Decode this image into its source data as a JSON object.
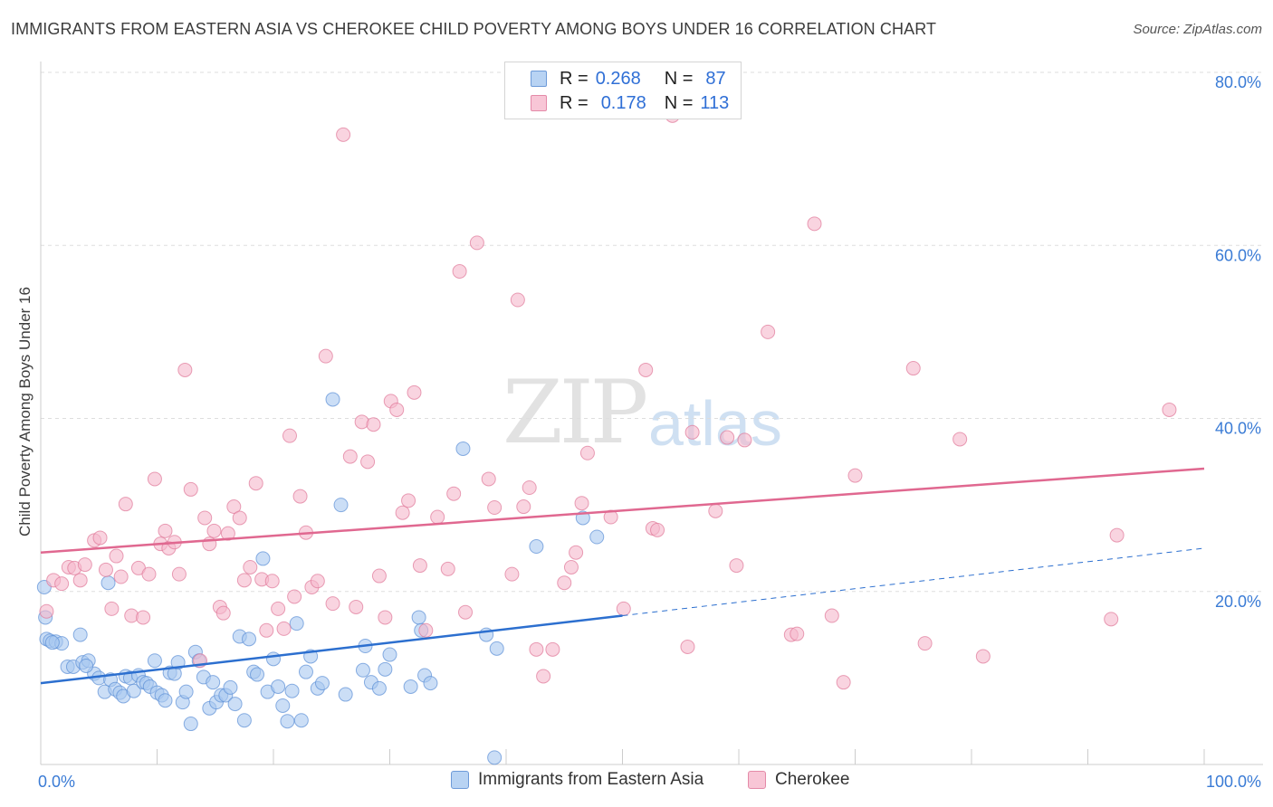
{
  "title": "IMMIGRANTS FROM EASTERN ASIA VS CHEROKEE CHILD POVERTY AMONG BOYS UNDER 16 CORRELATION CHART",
  "source": "Source: ZipAtlas.com",
  "watermark": {
    "zip": "ZIP",
    "atlas": "atlas"
  },
  "legend_top": [
    {
      "r_label": "R =",
      "r_value": "0.268",
      "n_label": "N =",
      "n_value": "87"
    },
    {
      "r_label": "R =",
      "r_value": "0.178",
      "n_label": "N =",
      "n_value": "113"
    }
  ],
  "colors": {
    "blue_fill": "#a8c8f0",
    "blue_stroke": "#5b8fd6",
    "blue_line": "#2c6fcf",
    "pink_fill": "#f5b8cc",
    "pink_stroke": "#e07898",
    "pink_line": "#e06890",
    "tick_text": "#3a7bd5",
    "grid": "#dddddd"
  },
  "chart_data": {
    "type": "scatter",
    "title": "IMMIGRANTS FROM EASTERN ASIA VS CHEROKEE CHILD POVERTY AMONG BOYS UNDER 16 CORRELATION CHART",
    "xlabel": "",
    "ylabel": "Child Poverty Among Boys Under 16",
    "xlim": [
      0,
      100
    ],
    "ylim": [
      0,
      80
    ],
    "x_tick_labels": [
      "0.0%",
      "100.0%"
    ],
    "y_tick_labels": [
      "20.0%",
      "40.0%",
      "60.0%",
      "80.0%"
    ],
    "y_ticks": [
      20,
      40,
      60,
      80
    ],
    "grid": "horizontal dashed",
    "legend_position": "top-center, bottom-center",
    "series": [
      {
        "name": "Immigrants from Eastern Asia",
        "color": "#a8c8f0",
        "trend": {
          "x0": 0,
          "y0": 9.4,
          "x1": 50,
          "y1": 17.2,
          "dashed_to": {
            "x": 100,
            "y": 25.0
          }
        },
        "points": [
          [
            0.3,
            20.5
          ],
          [
            0.5,
            14.5
          ],
          [
            0.8,
            14.3
          ],
          [
            1.3,
            14.2
          ],
          [
            1.8,
            14.0
          ],
          [
            2.3,
            11.3
          ],
          [
            2.8,
            11.3
          ],
          [
            3.4,
            15.0
          ],
          [
            3.6,
            11.8
          ],
          [
            4.1,
            12.0
          ],
          [
            4.6,
            10.5
          ],
          [
            5.0,
            10.0
          ],
          [
            5.5,
            8.4
          ],
          [
            5.8,
            21.0
          ],
          [
            6.0,
            9.8
          ],
          [
            6.4,
            8.7
          ],
          [
            6.8,
            8.3
          ],
          [
            7.1,
            7.9
          ],
          [
            7.3,
            10.2
          ],
          [
            7.7,
            10.0
          ],
          [
            8.0,
            8.5
          ],
          [
            8.4,
            10.3
          ],
          [
            8.8,
            9.5
          ],
          [
            9.1,
            9.4
          ],
          [
            9.4,
            9.0
          ],
          [
            9.8,
            12.0
          ],
          [
            10.0,
            8.3
          ],
          [
            10.4,
            8.0
          ],
          [
            10.7,
            7.4
          ],
          [
            11.1,
            10.6
          ],
          [
            11.5,
            10.5
          ],
          [
            11.8,
            11.8
          ],
          [
            12.2,
            7.2
          ],
          [
            12.5,
            8.4
          ],
          [
            12.9,
            4.7
          ],
          [
            13.3,
            13.0
          ],
          [
            13.6,
            12.0
          ],
          [
            14.0,
            10.1
          ],
          [
            14.5,
            6.5
          ],
          [
            14.8,
            9.5
          ],
          [
            15.1,
            7.2
          ],
          [
            15.5,
            8.0
          ],
          [
            15.9,
            8.0
          ],
          [
            16.3,
            8.9
          ],
          [
            16.7,
            7.0
          ],
          [
            17.1,
            14.8
          ],
          [
            17.5,
            5.1
          ],
          [
            17.9,
            14.5
          ],
          [
            18.3,
            10.7
          ],
          [
            18.6,
            10.4
          ],
          [
            19.1,
            23.8
          ],
          [
            19.5,
            8.4
          ],
          [
            20.0,
            12.2
          ],
          [
            20.4,
            9.0
          ],
          [
            20.8,
            6.8
          ],
          [
            21.2,
            5.0
          ],
          [
            21.6,
            8.5
          ],
          [
            22.0,
            16.3
          ],
          [
            22.4,
            5.1
          ],
          [
            22.8,
            10.7
          ],
          [
            23.2,
            12.5
          ],
          [
            23.8,
            8.8
          ],
          [
            24.2,
            9.4
          ],
          [
            25.1,
            42.2
          ],
          [
            25.8,
            30.0
          ],
          [
            26.2,
            8.1
          ],
          [
            27.7,
            10.9
          ],
          [
            27.9,
            13.7
          ],
          [
            28.4,
            9.5
          ],
          [
            29.1,
            8.8
          ],
          [
            29.6,
            11.0
          ],
          [
            30.0,
            12.7
          ],
          [
            31.8,
            9.0
          ],
          [
            32.5,
            17.0
          ],
          [
            32.7,
            15.5
          ],
          [
            33.0,
            10.3
          ],
          [
            33.5,
            9.4
          ],
          [
            36.3,
            36.5
          ],
          [
            38.3,
            15.0
          ],
          [
            39.0,
            0.8
          ],
          [
            39.2,
            13.4
          ],
          [
            42.6,
            25.2
          ],
          [
            46.6,
            28.5
          ],
          [
            47.8,
            26.3
          ],
          [
            0.4,
            17.0
          ],
          [
            1.0,
            14.1
          ],
          [
            3.9,
            11.4
          ]
        ]
      },
      {
        "name": "Cherokee",
        "color": "#f5b8cc",
        "trend": {
          "x0": 0,
          "y0": 24.5,
          "x1": 100,
          "y1": 34.2
        },
        "points": [
          [
            0.5,
            17.7
          ],
          [
            1.1,
            21.3
          ],
          [
            1.8,
            20.9
          ],
          [
            2.4,
            22.8
          ],
          [
            2.9,
            22.7
          ],
          [
            3.4,
            21.3
          ],
          [
            3.8,
            23.1
          ],
          [
            4.6,
            25.9
          ],
          [
            5.1,
            26.2
          ],
          [
            5.6,
            22.5
          ],
          [
            6.1,
            18.0
          ],
          [
            6.5,
            24.1
          ],
          [
            6.9,
            21.7
          ],
          [
            7.3,
            30.1
          ],
          [
            7.8,
            17.2
          ],
          [
            8.4,
            22.7
          ],
          [
            8.8,
            17.0
          ],
          [
            9.3,
            22.0
          ],
          [
            9.8,
            33.0
          ],
          [
            10.3,
            25.5
          ],
          [
            10.7,
            27.0
          ],
          [
            11.0,
            25.0
          ],
          [
            11.5,
            25.7
          ],
          [
            11.9,
            22.0
          ],
          [
            12.4,
            45.6
          ],
          [
            12.9,
            31.8
          ],
          [
            13.7,
            12.0
          ],
          [
            14.1,
            28.5
          ],
          [
            14.5,
            25.5
          ],
          [
            14.9,
            27.0
          ],
          [
            15.4,
            18.2
          ],
          [
            15.7,
            17.5
          ],
          [
            16.1,
            26.7
          ],
          [
            16.6,
            29.8
          ],
          [
            17.1,
            28.5
          ],
          [
            17.5,
            21.3
          ],
          [
            18.0,
            22.8
          ],
          [
            18.5,
            32.5
          ],
          [
            19.0,
            21.4
          ],
          [
            19.4,
            15.5
          ],
          [
            19.9,
            21.2
          ],
          [
            20.4,
            18.0
          ],
          [
            20.9,
            15.7
          ],
          [
            21.4,
            38.0
          ],
          [
            21.8,
            19.4
          ],
          [
            22.3,
            31.0
          ],
          [
            22.8,
            26.8
          ],
          [
            23.3,
            20.5
          ],
          [
            23.8,
            21.2
          ],
          [
            24.5,
            47.2
          ],
          [
            25.1,
            18.6
          ],
          [
            26.0,
            72.8
          ],
          [
            26.6,
            35.6
          ],
          [
            27.1,
            18.2
          ],
          [
            27.6,
            39.6
          ],
          [
            28.1,
            35.0
          ],
          [
            28.6,
            39.3
          ],
          [
            29.1,
            21.8
          ],
          [
            29.6,
            17.0
          ],
          [
            30.1,
            42.0
          ],
          [
            30.6,
            41.0
          ],
          [
            31.1,
            29.1
          ],
          [
            31.6,
            30.5
          ],
          [
            32.1,
            43.0
          ],
          [
            32.6,
            23.0
          ],
          [
            33.1,
            15.5
          ],
          [
            34.1,
            28.6
          ],
          [
            35.0,
            22.6
          ],
          [
            35.5,
            31.3
          ],
          [
            36.0,
            57.0
          ],
          [
            36.5,
            17.6
          ],
          [
            37.5,
            60.3
          ],
          [
            38.5,
            33.0
          ],
          [
            39.0,
            29.7
          ],
          [
            40.5,
            22.0
          ],
          [
            41.0,
            53.7
          ],
          [
            41.5,
            29.8
          ],
          [
            42.0,
            32.0
          ],
          [
            42.6,
            13.3
          ],
          [
            43.2,
            10.2
          ],
          [
            44.0,
            13.3
          ],
          [
            45.0,
            21.0
          ],
          [
            45.6,
            22.8
          ],
          [
            46.0,
            24.5
          ],
          [
            46.5,
            30.2
          ],
          [
            47.0,
            36.0
          ],
          [
            49.0,
            28.6
          ],
          [
            50.1,
            18.0
          ],
          [
            52.0,
            45.6
          ],
          [
            52.6,
            27.3
          ],
          [
            53.0,
            27.1
          ],
          [
            54.3,
            75.0
          ],
          [
            55.6,
            13.6
          ],
          [
            56.0,
            38.4
          ],
          [
            58.0,
            29.3
          ],
          [
            59.0,
            37.8
          ],
          [
            59.8,
            23.0
          ],
          [
            60.5,
            37.5
          ],
          [
            62.5,
            50.0
          ],
          [
            64.5,
            15.0
          ],
          [
            65.0,
            15.1
          ],
          [
            66.5,
            62.5
          ],
          [
            68.0,
            17.2
          ],
          [
            69.0,
            9.5
          ],
          [
            70.0,
            33.4
          ],
          [
            75.0,
            45.8
          ],
          [
            76.0,
            14.0
          ],
          [
            79.0,
            37.6
          ],
          [
            81.0,
            12.5
          ],
          [
            92.0,
            16.8
          ],
          [
            92.5,
            26.5
          ],
          [
            97.0,
            41.0
          ]
        ]
      }
    ]
  }
}
